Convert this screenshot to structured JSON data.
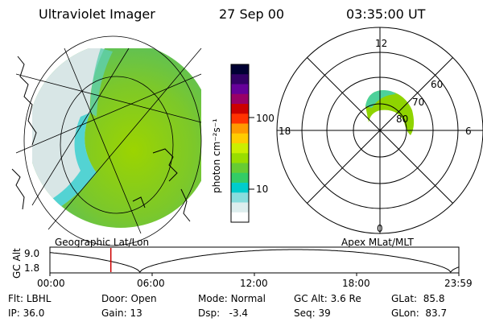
{
  "header": {
    "title": "Ultraviolet Imager",
    "date": "27 Sep 00",
    "time": "03:35:00 UT"
  },
  "geo_map": {
    "label": "Geographic Lat/Lon"
  },
  "colorbar": {
    "unit_label": "photon cm⁻²s⁻¹",
    "ticks": [
      "100",
      "10"
    ],
    "colors": [
      "#000033",
      "#330066",
      "#660099",
      "#990066",
      "#cc0000",
      "#ff3300",
      "#ff9900",
      "#ffcc00",
      "#ccee00",
      "#99dd00",
      "#66cc33",
      "#33cc66",
      "#00cccc",
      "#88dddd",
      "#ddeeee",
      "#ffffff"
    ]
  },
  "polar_map": {
    "label": "Apex MLat/MLT",
    "mlt_labels": {
      "top": "12",
      "left": "18",
      "right": "6",
      "bottom": "0"
    },
    "lat_labels": [
      "60",
      "70",
      "80"
    ]
  },
  "timeline": {
    "ylabel": "GC Alt",
    "yticks": [
      "9.0",
      "1.8"
    ],
    "xticks": [
      "00:00",
      "06:00",
      "12:00",
      "18:00",
      "23:59"
    ],
    "current_time_fraction": 0.149
  },
  "info": {
    "row1": [
      {
        "label": "Flt:",
        "value": "LBHL"
      },
      {
        "label": "Door:",
        "value": "Open"
      },
      {
        "label": "Mode:",
        "value": "Normal"
      },
      {
        "label": "GC Alt:",
        "value": "3.6 Re"
      },
      {
        "label": "GLat:",
        "value": "85.8"
      }
    ],
    "row2": [
      {
        "label": "IP:",
        "value": "36.0"
      },
      {
        "label": "Gain:",
        "value": "13"
      },
      {
        "label": "Dsp:",
        "value": "-3.4"
      },
      {
        "label": "Seq:",
        "value": "39"
      },
      {
        "label": "GLon:",
        "value": "83.7"
      }
    ]
  }
}
